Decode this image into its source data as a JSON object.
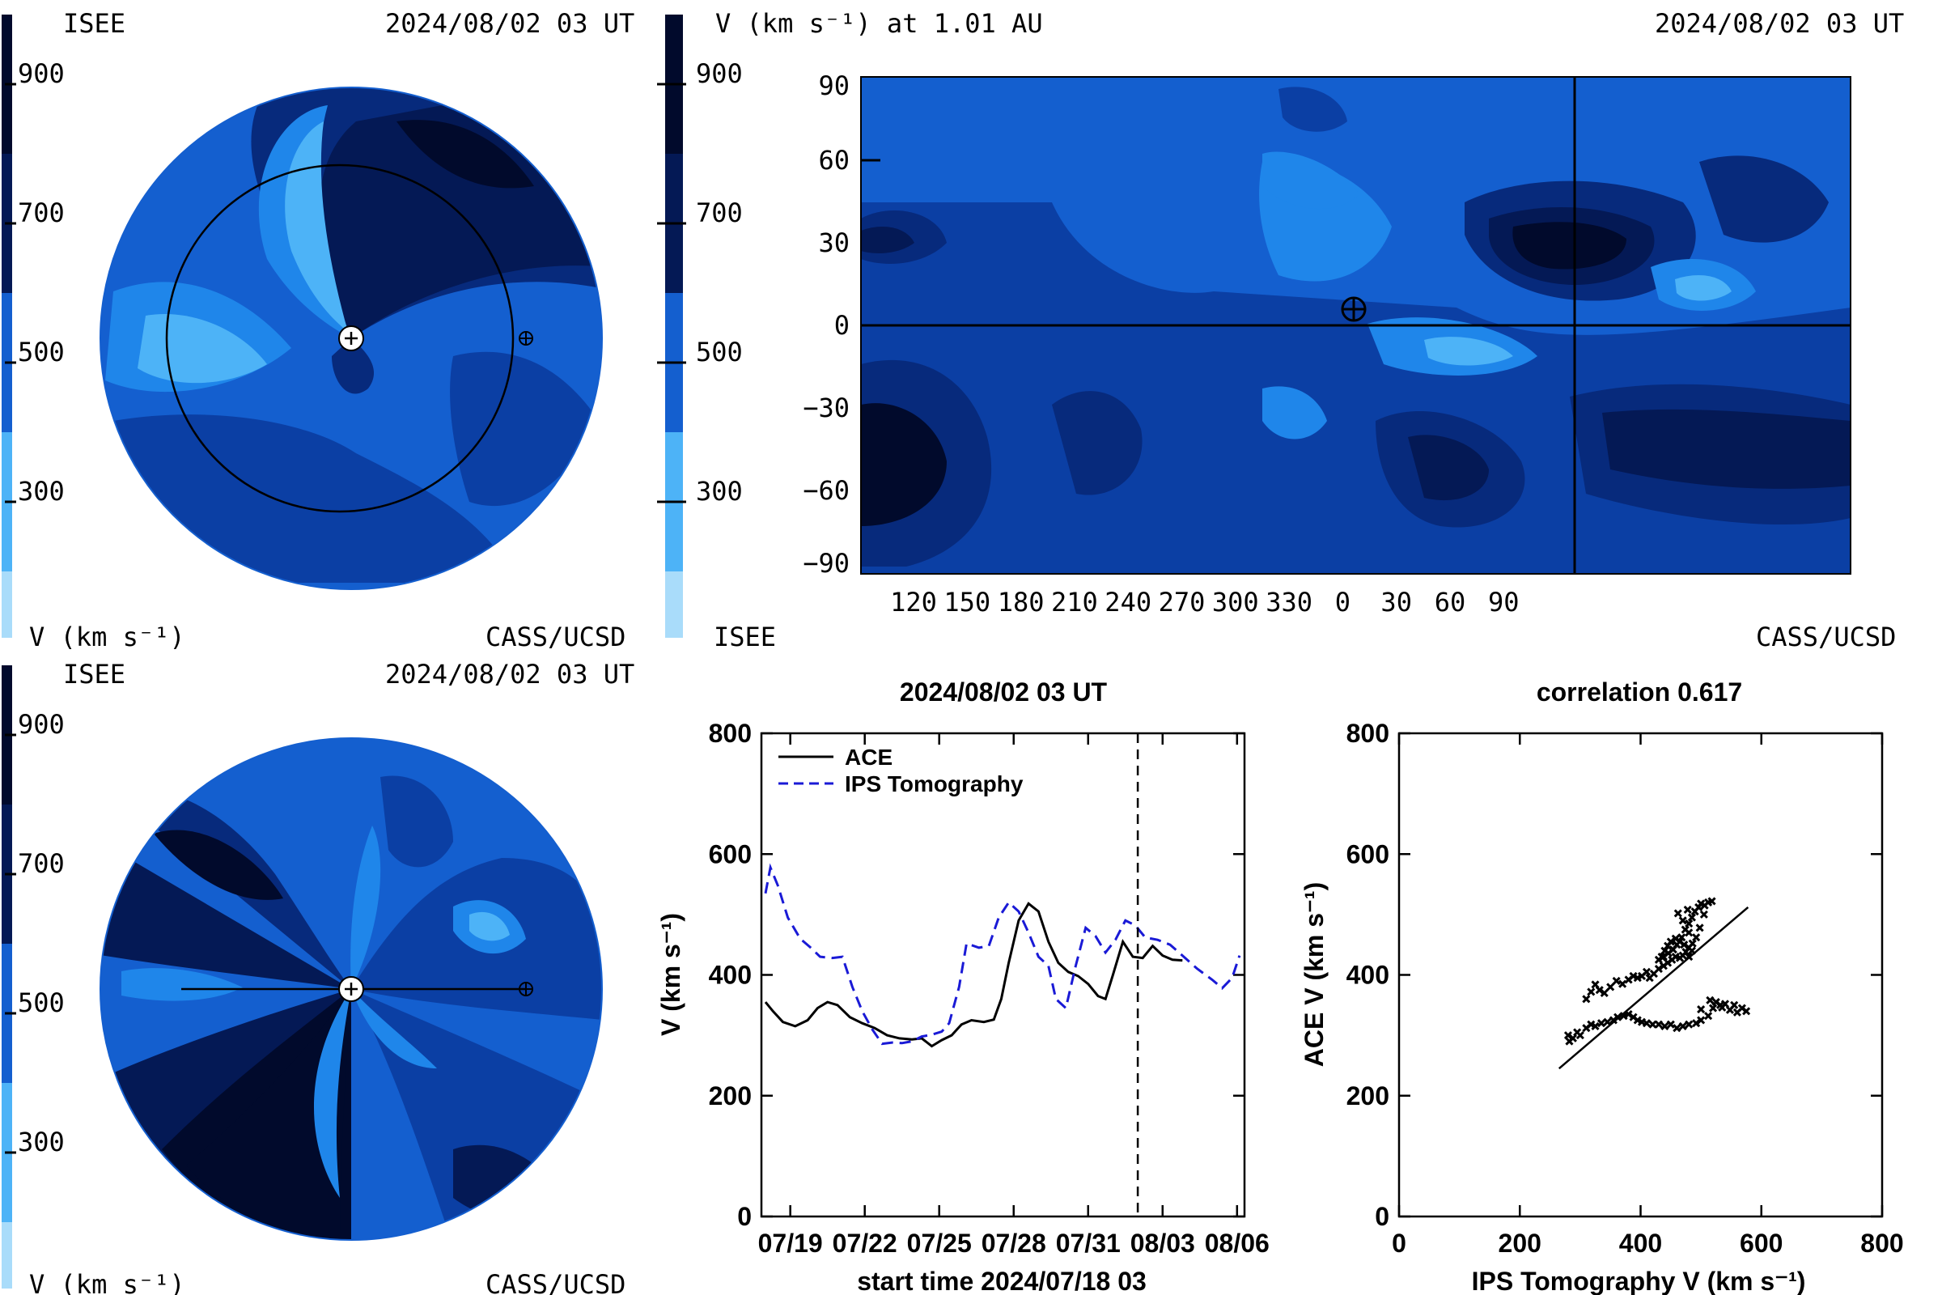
{
  "colors": {
    "scale": [
      "#a9dcfa",
      "#4db3f7",
      "#1f86ea",
      "#145fcf",
      "#0b3fa4",
      "#072a7c",
      "#041955",
      "#010a2c"
    ],
    "tomography_line": "#1a1ad6",
    "ace_line": "#000000"
  },
  "panel_top_left": {
    "org_left": "ISEE",
    "timestamp": "2024/08/02 03 UT",
    "colorbar_ticks": [
      "900",
      "700",
      "500",
      "300"
    ],
    "colorbar_label": "V (km s⁻¹)",
    "org_right": "CASS/UCSD"
  },
  "panel_top_right": {
    "title": "V (km s⁻¹) at 1.01 AU",
    "timestamp": "2024/08/02 03 UT",
    "colorbar_ticks": [
      "900",
      "700",
      "500",
      "300"
    ],
    "y_ticks": [
      "90",
      "60",
      "30",
      "0",
      "−30",
      "−60",
      "−90"
    ],
    "x_ticks": [
      "120",
      "150",
      "180",
      "210",
      "240",
      "270",
      "300",
      "330",
      "0",
      "30",
      "60",
      "90"
    ],
    "org_left": "ISEE",
    "org_right": "CASS/UCSD"
  },
  "panel_bottom_left": {
    "org_left": "ISEE",
    "timestamp": "2024/08/02 03 UT",
    "colorbar_ticks": [
      "900",
      "700",
      "500",
      "300"
    ],
    "colorbar_label": "V (km s⁻¹)",
    "org_right": "CASS/UCSD"
  },
  "chart_data": [
    {
      "type": "line",
      "title": "2024/08/02 03 UT",
      "xlabel": "start time 2024/07/18 03",
      "ylabel": "V (km s⁻¹)",
      "ylim": [
        0,
        800
      ],
      "y_ticks": [
        "0",
        "200",
        "400",
        "600",
        "800"
      ],
      "x_tick_labels": [
        "07/19",
        "07/22",
        "07/25",
        "07/28",
        "07/31",
        "08/03",
        "08/06"
      ],
      "marker_day": 15.0,
      "legend_position": "top-left",
      "series": [
        {
          "name": "ACE",
          "style": "solid",
          "points": [
            [
              0.0,
              355
            ],
            [
              0.3,
              340
            ],
            [
              0.7,
              322
            ],
            [
              1.2,
              315
            ],
            [
              1.7,
              325
            ],
            [
              2.1,
              345
            ],
            [
              2.5,
              355
            ],
            [
              2.9,
              350
            ],
            [
              3.4,
              330
            ],
            [
              3.9,
              320
            ],
            [
              4.4,
              312
            ],
            [
              4.9,
              300
            ],
            [
              5.4,
              295
            ],
            [
              5.9,
              293
            ],
            [
              6.3,
              295
            ],
            [
              6.7,
              282
            ],
            [
              7.1,
              292
            ],
            [
              7.5,
              300
            ],
            [
              7.9,
              318
            ],
            [
              8.3,
              325
            ],
            [
              8.8,
              322
            ],
            [
              9.2,
              326
            ],
            [
              9.5,
              360
            ],
            [
              9.8,
              420
            ],
            [
              10.2,
              490
            ],
            [
              10.6,
              518
            ],
            [
              11.0,
              505
            ],
            [
              11.4,
              455
            ],
            [
              11.8,
              420
            ],
            [
              12.2,
              405
            ],
            [
              12.6,
              398
            ],
            [
              13.0,
              385
            ],
            [
              13.4,
              365
            ],
            [
              13.7,
              360
            ],
            [
              14.0,
              400
            ],
            [
              14.4,
              455
            ],
            [
              14.8,
              430
            ],
            [
              15.2,
              428
            ],
            [
              15.6,
              448
            ],
            [
              16.0,
              432
            ],
            [
              16.4,
              425
            ],
            [
              16.8,
              424
            ]
          ]
        },
        {
          "name": "IPS Tomography",
          "style": "dashed",
          "points": [
            [
              0.0,
              535
            ],
            [
              0.2,
              578
            ],
            [
              0.5,
              548
            ],
            [
              0.9,
              495
            ],
            [
              1.4,
              460
            ],
            [
              1.8,
              446
            ],
            [
              2.2,
              430
            ],
            [
              2.7,
              428
            ],
            [
              3.1,
              430
            ],
            [
              3.5,
              380
            ],
            [
              3.9,
              340
            ],
            [
              4.3,
              310
            ],
            [
              4.7,
              286
            ],
            [
              5.1,
              288
            ],
            [
              5.5,
              287
            ],
            [
              5.9,
              290
            ],
            [
              6.3,
              298
            ],
            [
              6.7,
              301
            ],
            [
              7.1,
              306
            ],
            [
              7.4,
              320
            ],
            [
              7.8,
              380
            ],
            [
              8.1,
              452
            ],
            [
              8.6,
              445
            ],
            [
              9.0,
              448
            ],
            [
              9.4,
              495
            ],
            [
              9.8,
              520
            ],
            [
              10.2,
              505
            ],
            [
              10.6,
              470
            ],
            [
              11.0,
              430
            ],
            [
              11.4,
              415
            ],
            [
              11.7,
              360
            ],
            [
              12.1,
              345
            ],
            [
              12.5,
              415
            ],
            [
              12.9,
              478
            ],
            [
              13.3,
              464
            ],
            [
              13.7,
              437
            ],
            [
              14.1,
              458
            ],
            [
              14.5,
              490
            ],
            [
              14.9,
              482
            ],
            [
              15.3,
              462
            ],
            [
              15.8,
              458
            ],
            [
              16.3,
              450
            ],
            [
              16.8,
              432
            ],
            [
              17.4,
              410
            ],
            [
              18.0,
              392
            ],
            [
              18.4,
              378
            ],
            [
              18.8,
              395
            ],
            [
              19.1,
              432
            ]
          ]
        }
      ]
    },
    {
      "type": "scatter",
      "title": "correlation 0.617",
      "xlabel": "IPS Tomography V (km s⁻¹)",
      "ylabel": "ACE V (km s⁻¹)",
      "xlim": [
        0,
        800
      ],
      "ylim": [
        0,
        800
      ],
      "x_ticks": [
        "0",
        "200",
        "400",
        "600",
        "800"
      ],
      "y_ticks": [
        "0",
        "200",
        "400",
        "600",
        "800"
      ],
      "fit_line": [
        [
          265,
          245
        ],
        [
          578,
          512
        ]
      ],
      "points": [
        [
          280,
          300
        ],
        [
          282,
          290
        ],
        [
          288,
          295
        ],
        [
          295,
          305
        ],
        [
          300,
          300
        ],
        [
          310,
          312
        ],
        [
          318,
          318
        ],
        [
          325,
          315
        ],
        [
          335,
          320
        ],
        [
          345,
          322
        ],
        [
          355,
          325
        ],
        [
          362,
          330
        ],
        [
          372,
          332
        ],
        [
          380,
          335
        ],
        [
          388,
          330
        ],
        [
          395,
          325
        ],
        [
          402,
          322
        ],
        [
          410,
          320
        ],
        [
          420,
          318
        ],
        [
          430,
          318
        ],
        [
          440,
          315
        ],
        [
          450,
          318
        ],
        [
          460,
          312
        ],
        [
          470,
          315
        ],
        [
          480,
          318
        ],
        [
          492,
          320
        ],
        [
          500,
          325
        ],
        [
          512,
          332
        ],
        [
          520,
          345
        ],
        [
          532,
          350
        ],
        [
          540,
          352
        ],
        [
          555,
          350
        ],
        [
          568,
          345
        ],
        [
          575,
          340
        ],
        [
          560,
          338
        ],
        [
          548,
          342
        ],
        [
          535,
          346
        ],
        [
          525,
          355
        ],
        [
          515,
          358
        ],
        [
          500,
          343
        ],
        [
          310,
          360
        ],
        [
          318,
          372
        ],
        [
          325,
          384
        ],
        [
          332,
          375
        ],
        [
          340,
          370
        ],
        [
          350,
          380
        ],
        [
          360,
          390
        ],
        [
          370,
          385
        ],
        [
          380,
          392
        ],
        [
          388,
          398
        ],
        [
          395,
          395
        ],
        [
          402,
          398
        ],
        [
          410,
          405
        ],
        [
          415,
          395
        ],
        [
          422,
          402
        ],
        [
          430,
          410
        ],
        [
          438,
          415
        ],
        [
          445,
          420
        ],
        [
          452,
          425
        ],
        [
          458,
          430
        ],
        [
          465,
          428
        ],
        [
          470,
          432
        ],
        [
          475,
          438
        ],
        [
          480,
          430
        ],
        [
          485,
          440
        ],
        [
          480,
          445
        ],
        [
          472,
          450
        ],
        [
          465,
          455
        ],
        [
          458,
          460
        ],
        [
          450,
          455
        ],
        [
          445,
          448
        ],
        [
          440,
          440
        ],
        [
          435,
          430
        ],
        [
          430,
          425
        ],
        [
          438,
          430
        ],
        [
          446,
          436
        ],
        [
          454,
          442
        ],
        [
          460,
          450
        ],
        [
          468,
          462
        ],
        [
          474,
          475
        ],
        [
          480,
          485
        ],
        [
          485,
          495
        ],
        [
          490,
          505
        ],
        [
          496,
          512
        ],
        [
          500,
          518
        ],
        [
          506,
          515
        ],
        [
          512,
          520
        ],
        [
          518,
          522
        ],
        [
          505,
          500
        ],
        [
          498,
          478
        ],
        [
          492,
          462
        ],
        [
          486,
          452
        ],
        [
          480,
          470
        ],
        [
          470,
          490
        ],
        [
          462,
          502
        ],
        [
          478,
          508
        ]
      ]
    }
  ]
}
